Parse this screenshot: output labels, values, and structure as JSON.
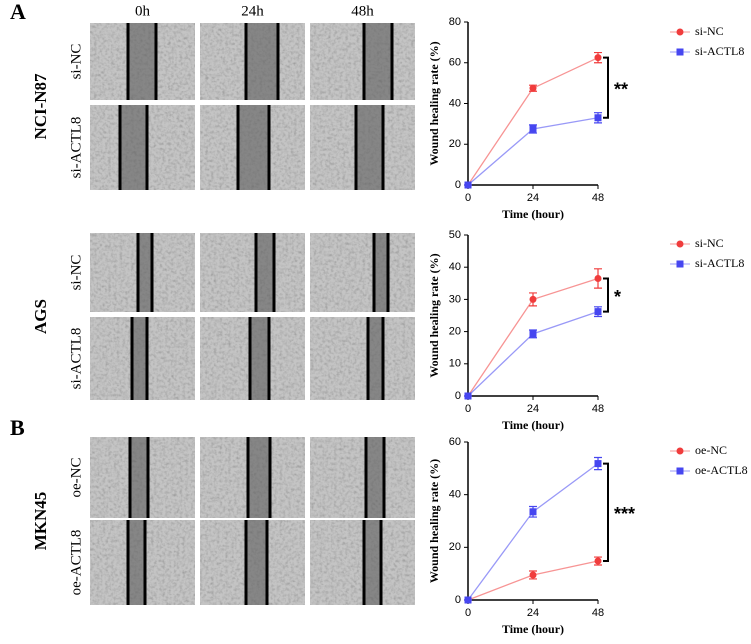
{
  "panels": [
    "A",
    "B"
  ],
  "columns": [
    "0h",
    "24h",
    "48h"
  ],
  "groups": [
    {
      "cell_line": "NCI-N87",
      "rows": [
        "si-NC",
        "si-ACTL8"
      ]
    },
    {
      "cell_line": "AGS",
      "rows": [
        "si-NC",
        "si-ACTL8"
      ]
    },
    {
      "cell_line": "MKN45",
      "rows": [
        "oe-NC",
        "oe-ACTL8"
      ]
    }
  ],
  "chart_data": [
    {
      "type": "line",
      "xlabel": "Time (hour)",
      "ylabel": "Wound healing rate (%)",
      "x": [
        0,
        24,
        48
      ],
      "xlim": [
        0,
        48
      ],
      "xticks": [
        0,
        24,
        48
      ],
      "ylim": [
        0,
        80
      ],
      "yticks": [
        0,
        20,
        40,
        60,
        80
      ],
      "series": [
        {
          "name": "si-NC",
          "color": "#f03c3c",
          "values": [
            0,
            47.5,
            62.5
          ],
          "errors": [
            0,
            1.5,
            2.5
          ]
        },
        {
          "name": "si-ACTL8",
          "color": "#4646f0",
          "values": [
            0,
            27.5,
            33
          ],
          "errors": [
            0,
            2,
            2.5
          ]
        }
      ],
      "annotation": "**"
    },
    {
      "type": "line",
      "xlabel": "Time (hour)",
      "ylabel": "Wound healing rate (%)",
      "x": [
        0,
        24,
        48
      ],
      "xlim": [
        0,
        48
      ],
      "xticks": [
        0,
        24,
        48
      ],
      "ylim": [
        0,
        50
      ],
      "yticks": [
        0,
        10,
        20,
        30,
        40,
        50
      ],
      "series": [
        {
          "name": "si-NC",
          "color": "#f03c3c",
          "values": [
            0,
            30,
            36.5
          ],
          "errors": [
            0,
            2,
            3
          ]
        },
        {
          "name": "si-ACTL8",
          "color": "#4646f0",
          "values": [
            0,
            19.3,
            26.2
          ],
          "errors": [
            0,
            1.2,
            1.5
          ]
        }
      ],
      "annotation": "*"
    },
    {
      "type": "line",
      "xlabel": "Time (hour)",
      "ylabel": "Wound healing rate (%)",
      "x": [
        0,
        24,
        48
      ],
      "xlim": [
        0,
        48
      ],
      "xticks": [
        0,
        24,
        48
      ],
      "ylim": [
        0,
        60
      ],
      "yticks": [
        0,
        20,
        40,
        60
      ],
      "series": [
        {
          "name": "oe-NC",
          "color": "#f03c3c",
          "values": [
            0,
            9.5,
            14.8
          ],
          "errors": [
            0,
            1.5,
            1.5
          ]
        },
        {
          "name": "oe-ACTL8",
          "color": "#4646f0",
          "values": [
            0,
            33.5,
            51.8
          ],
          "errors": [
            0,
            2,
            2.3
          ]
        }
      ],
      "annotation": "***"
    }
  ]
}
